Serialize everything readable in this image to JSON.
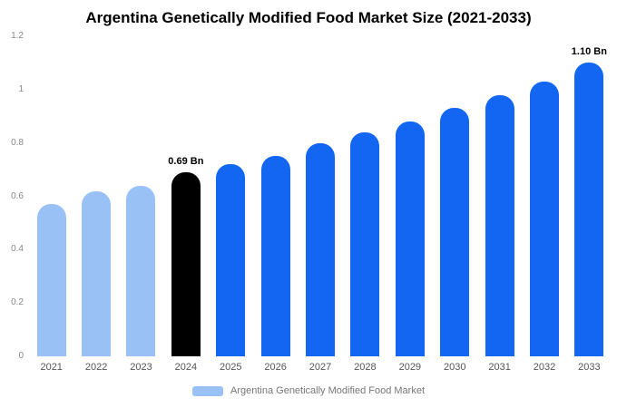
{
  "legend": {
    "label": "Argentina Genetically Modified Food Market",
    "swatch_color": "#9ac1f5"
  },
  "colors": {
    "historical_bar": "#9ac1f5",
    "current_bar": "#000000",
    "forecast_bar": "#1266f1",
    "title_text": "#000000",
    "axis_text": "#888888",
    "xlabel_text": "#555555",
    "legend_text": "#777777"
  },
  "chart_data": {
    "type": "bar",
    "title": "Argentina Genetically Modified Food Market Size (2021-2033)",
    "xlabel": "",
    "ylabel": "",
    "categories": [
      "2021",
      "2022",
      "2023",
      "2024",
      "2025",
      "2026",
      "2027",
      "2028",
      "2029",
      "2030",
      "2031",
      "2032",
      "2033"
    ],
    "values": [
      0.57,
      0.62,
      0.64,
      0.69,
      0.72,
      0.75,
      0.8,
      0.84,
      0.88,
      0.93,
      0.98,
      1.03,
      1.1
    ],
    "bar_colors": [
      "#9ac1f5",
      "#9ac1f5",
      "#9ac1f5",
      "#000000",
      "#1266f1",
      "#1266f1",
      "#1266f1",
      "#1266f1",
      "#1266f1",
      "#1266f1",
      "#1266f1",
      "#1266f1",
      "#1266f1"
    ],
    "annotations": [
      {
        "index": 3,
        "text": "0.69 Bn"
      },
      {
        "index": 12,
        "text": "1.10 Bn"
      }
    ],
    "ylim": [
      0,
      1.2
    ],
    "yticks": [
      0,
      0.2,
      0.4,
      0.6,
      0.8,
      1.0,
      1.2
    ],
    "ytick_labels": [
      "0",
      "0.2",
      "0.4",
      "0.6",
      "0.8",
      "1",
      "1.2"
    ],
    "grid": false,
    "legend_position": "bottom"
  }
}
